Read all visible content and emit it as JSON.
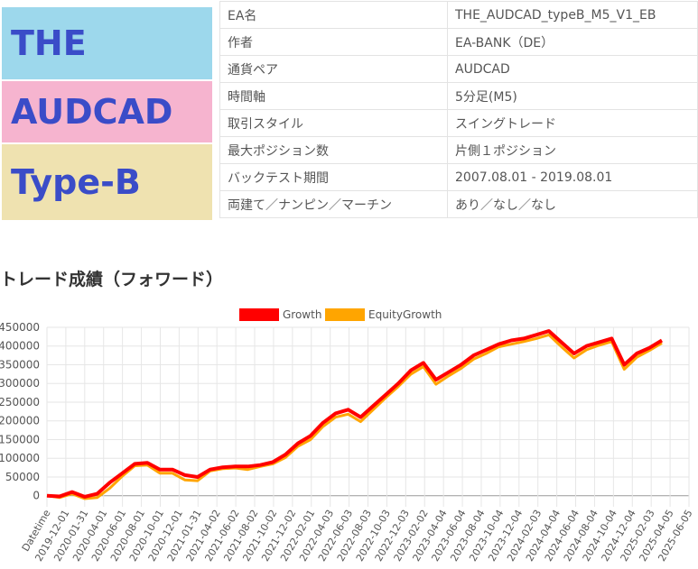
{
  "banner": {
    "line1": "THE",
    "line2": "AUDCAD",
    "line3": "Type-B"
  },
  "info_rows": [
    {
      "label": "EA名",
      "value": "THE_AUDCAD_typeB_M5_V1_EB"
    },
    {
      "label": "作者",
      "value": "EA-BANK（DE）"
    },
    {
      "label": "通貨ペア",
      "value": "AUDCAD"
    },
    {
      "label": "時間軸",
      "value": "5分足(M5)"
    },
    {
      "label": "取引スタイル",
      "value": "スイングトレード"
    },
    {
      "label": "最大ポジション数",
      "value": "片側１ポジション"
    },
    {
      "label": "バックテスト期間",
      "value": "2007.08.01 - 2019.08.01"
    },
    {
      "label": "両建て／ナンピン／マーチン",
      "value": "あり／なし／なし"
    }
  ],
  "section_title": "トレード成績（フォワード）",
  "colors": {
    "growth": "#ff0000",
    "equity": "#ffa500",
    "grid": "#e6e6e6",
    "axis": "#666666"
  },
  "chart_data": {
    "type": "line",
    "legend": [
      "Growth",
      "EquityGrowth"
    ],
    "legend_position": "top",
    "ylim": [
      -20000,
      450000
    ],
    "yticks": [
      0,
      50000,
      100000,
      150000,
      200000,
      250000,
      300000,
      350000,
      400000,
      450000
    ],
    "x_tick_labels": [
      "Datetime",
      "2019-12-01",
      "2020-01-31",
      "2020-04-01",
      "2020-06-01",
      "2020-08-01",
      "2020-10-01",
      "2020-12-01",
      "2021-01-31",
      "2021-04-02",
      "2021-06-02",
      "2021-08-02",
      "2021-10-02",
      "2021-12-02",
      "2022-02-01",
      "2022-04-03",
      "2022-06-03",
      "2022-08-03",
      "2022-10-03",
      "2022-12-03",
      "2023-02-02",
      "2023-04-04",
      "2023-06-04",
      "2023-08-04",
      "2023-10-04",
      "2023-12-04",
      "2024-02-03",
      "2024-04-04",
      "2024-06-04",
      "2024-08-04",
      "2024-10-04",
      "2024-12-04",
      "2025-02-03",
      "2025-04-05",
      "2025-06-05"
    ],
    "series": [
      {
        "name": "Growth",
        "values": [
          0,
          -2000,
          10000,
          -3000,
          5000,
          35000,
          60000,
          85000,
          88000,
          70000,
          70000,
          55000,
          50000,
          70000,
          76000,
          78000,
          78000,
          82000,
          90000,
          110000,
          140000,
          160000,
          195000,
          220000,
          230000,
          210000,
          240000,
          270000,
          300000,
          335000,
          355000,
          310000,
          330000,
          350000,
          375000,
          390000,
          405000,
          415000,
          420000,
          430000,
          440000,
          410000,
          380000,
          400000,
          410000,
          420000,
          350000,
          380000,
          395000,
          415000
        ]
      },
      {
        "name": "EquityGrowth",
        "values": [
          0,
          -5000,
          5000,
          -8000,
          -5000,
          20000,
          52000,
          80000,
          82000,
          60000,
          60000,
          42000,
          40000,
          66000,
          72000,
          74000,
          70000,
          78000,
          85000,
          102000,
          132000,
          150000,
          185000,
          210000,
          218000,
          198000,
          230000,
          262000,
          292000,
          325000,
          345000,
          298000,
          320000,
          340000,
          365000,
          380000,
          398000,
          405000,
          412000,
          420000,
          430000,
          398000,
          368000,
          390000,
          402000,
          412000,
          338000,
          370000,
          388000,
          408000
        ]
      }
    ]
  }
}
